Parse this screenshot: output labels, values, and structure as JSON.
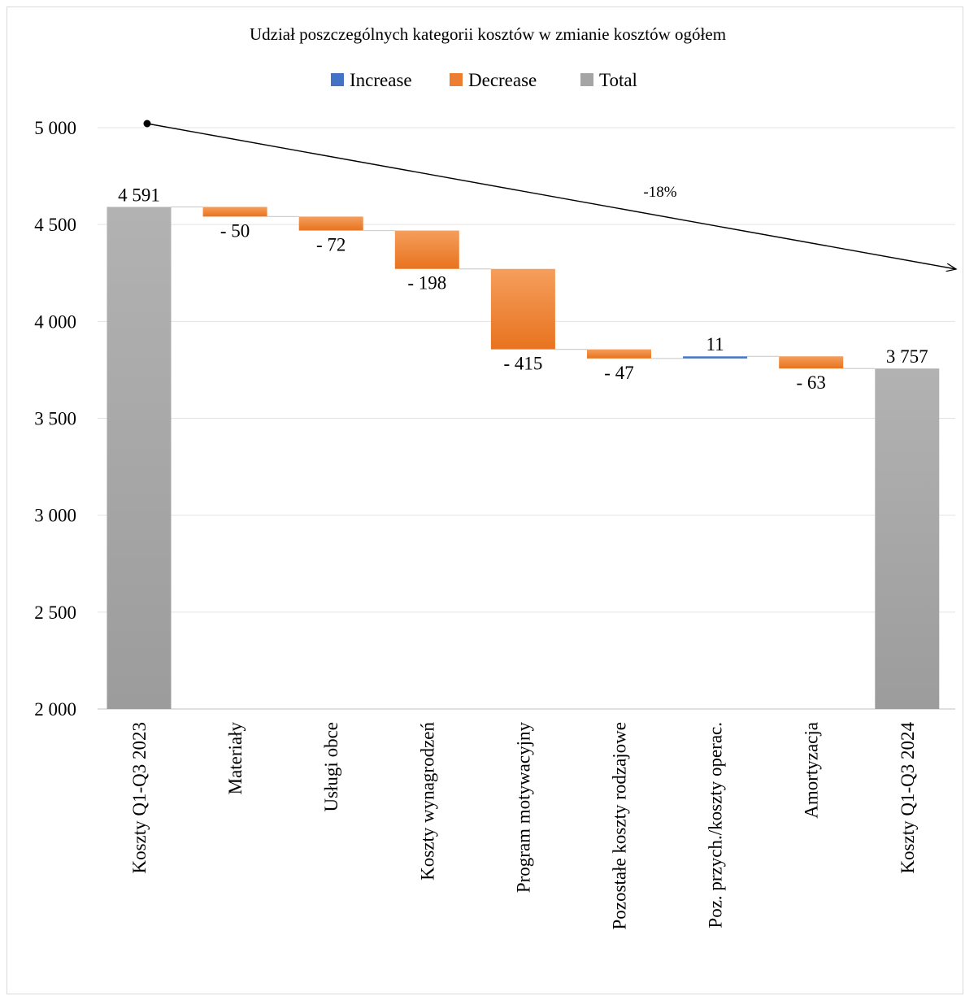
{
  "chart_data": {
    "type": "waterfall",
    "title": "Udział poszczególnych kategorii kosztów w zmianie kosztów ogółem",
    "legend": [
      {
        "label": "Increase",
        "color": "#4472c4"
      },
      {
        "label": "Decrease",
        "color": "#ed7d31"
      },
      {
        "label": "Total",
        "color": "#a5a5a5"
      }
    ],
    "legend_position": "top",
    "categories": [
      "Koszty Q1-Q3 2023",
      "Materiały",
      "Usługi obce",
      "Koszty wynagrodzeń",
      "Program motywacyjny",
      "Pozostałe koszty rodzajowe",
      "Poz. przych./koszty operac.",
      "Amortyzacja",
      "Koszty Q1-Q3 2024"
    ],
    "values": [
      4591,
      -50,
      -72,
      -198,
      -415,
      -47,
      11,
      -63,
      3757
    ],
    "kinds": [
      "total",
      "decrease",
      "decrease",
      "decrease",
      "decrease",
      "decrease",
      "increase",
      "decrease",
      "total"
    ],
    "data_labels": [
      "4 591",
      "- 50",
      "- 72",
      "- 198",
      "- 415",
      "- 47",
      "11",
      "- 63",
      "3 757"
    ],
    "y_ticks": [
      2000,
      2500,
      3000,
      3500,
      4000,
      4500,
      5000
    ],
    "y_tick_labels": [
      "2 000",
      "2 500",
      "3 000",
      "3 500",
      "4 000",
      "4 500",
      "5 000"
    ],
    "ylim": [
      2000,
      5000
    ],
    "grid": true,
    "annotation": {
      "text": "-18%",
      "type": "arrow"
    }
  }
}
